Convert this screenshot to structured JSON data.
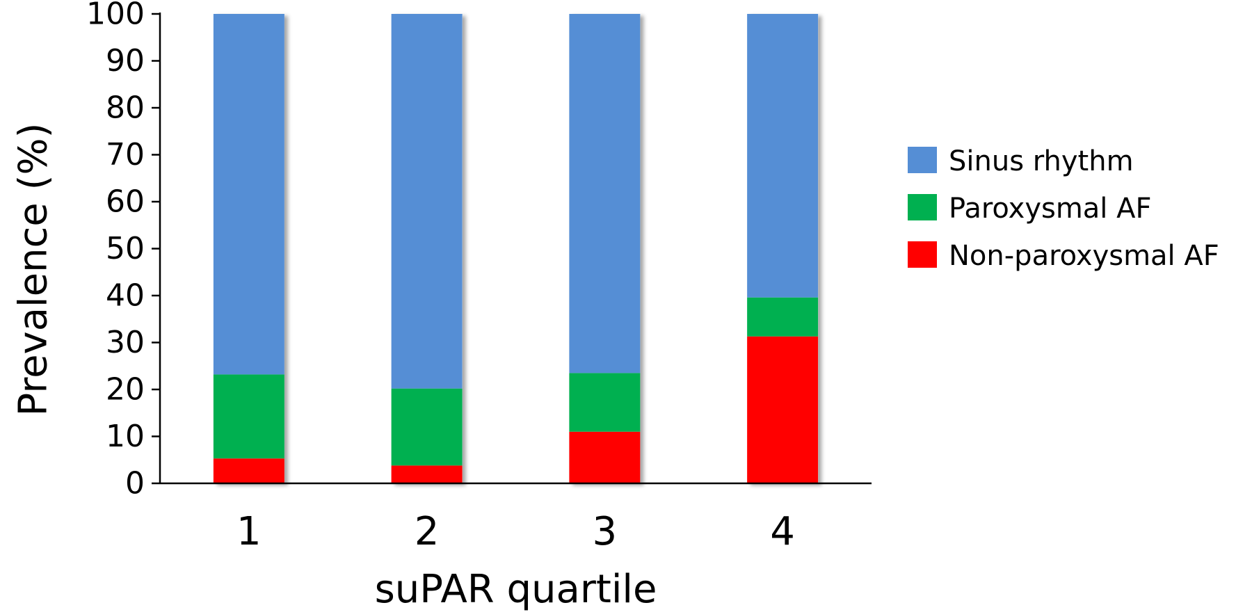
{
  "chart_data": {
    "type": "bar",
    "stacked": true,
    "categories": [
      "1",
      "2",
      "3",
      "4"
    ],
    "series": [
      {
        "name": "Non-paroxysmal AF",
        "values": [
          5.3,
          3.8,
          11.0,
          31.3
        ],
        "color": "#ff0000"
      },
      {
        "name": "Paroxysmal AF",
        "values": [
          17.9,
          16.4,
          12.5,
          8.3
        ],
        "color": "#00b050"
      },
      {
        "name": "Sinus rhythm",
        "values": [
          76.8,
          79.8,
          76.5,
          60.4
        ],
        "color": "#558ed5"
      }
    ],
    "legend_order": [
      "Sinus rhythm",
      "Paroxysmal AF",
      "Non-paroxysmal AF"
    ],
    "xlabel": "suPAR quartile",
    "ylabel": "Prevalence (%)",
    "ylim": [
      0,
      100
    ],
    "yticks": [
      0,
      10,
      20,
      30,
      40,
      50,
      60,
      70,
      80,
      90,
      100
    ],
    "grid": false,
    "legend_position": "right"
  }
}
